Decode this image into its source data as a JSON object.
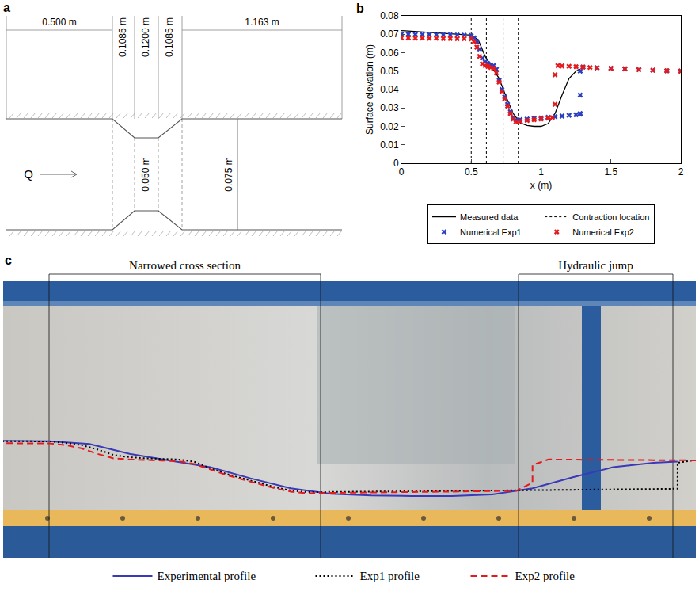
{
  "panel_labels": [
    "a",
    "b",
    "c"
  ],
  "diagram": {
    "flow_label": "Q",
    "lengths": [
      "0.500 m",
      "0.1085 m",
      "0.1200 m",
      "0.1085 m",
      "1.163 m"
    ],
    "narrow_width": "0.050 m",
    "channel_width": "0.075 m"
  },
  "chart_data": {
    "type": "line",
    "xlabel": "x (m)",
    "ylabel": "Surface elevation (m)",
    "xlim": [
      0,
      2
    ],
    "ylim": [
      0,
      0.08
    ],
    "xticks": [
      0,
      0.5,
      1,
      1.5,
      2
    ],
    "yticks": [
      0,
      0.01,
      0.02,
      0.03,
      0.04,
      0.05,
      0.06,
      0.07,
      0.08
    ],
    "grid": false,
    "legend": "bottom",
    "series": [
      {
        "name": "Measured data",
        "type": "line",
        "color": "#000000",
        "line_style": "solid",
        "x": [
          0,
          0.1,
          0.2,
          0.3,
          0.4,
          0.5,
          0.55,
          0.6,
          0.65,
          0.7,
          0.75,
          0.8,
          0.85,
          0.9,
          0.95,
          1.0,
          1.05,
          1.1,
          1.15,
          1.2,
          1.25,
          1.28
        ],
        "values": [
          0.072,
          0.0715,
          0.071,
          0.0705,
          0.07,
          0.0695,
          0.067,
          0.058,
          0.052,
          0.046,
          0.036,
          0.027,
          0.022,
          0.0205,
          0.02,
          0.02,
          0.0215,
          0.027,
          0.037,
          0.046,
          0.05,
          0.051
        ]
      },
      {
        "name": "Contraction location",
        "type": "vline",
        "color": "#000000",
        "line_style": "dotted",
        "x": [
          0.5,
          0.6085,
          0.7285,
          0.837
        ]
      },
      {
        "name": "Numerical Exp1",
        "type": "scatter",
        "marker": "x",
        "color": "#2b3fbf",
        "x": [
          0,
          0.05,
          0.1,
          0.15,
          0.2,
          0.25,
          0.3,
          0.35,
          0.4,
          0.45,
          0.5,
          0.52,
          0.54,
          0.56,
          0.58,
          0.6,
          0.62,
          0.64,
          0.66,
          0.68,
          0.7,
          0.72,
          0.74,
          0.76,
          0.78,
          0.8,
          0.82,
          0.85,
          0.9,
          0.95,
          1,
          1.05,
          1.1,
          1.15,
          1.2,
          1.25,
          1.28,
          1.28,
          1.28,
          1.28,
          1.3,
          1.4,
          1.5,
          1.6,
          1.7,
          1.8,
          1.9,
          2
        ],
        "values": [
          0.07,
          0.07,
          0.0699,
          0.0699,
          0.0698,
          0.0698,
          0.0697,
          0.0697,
          0.0696,
          0.0695,
          0.0693,
          0.068,
          0.066,
          0.062,
          0.057,
          0.055,
          0.054,
          0.0535,
          0.053,
          0.051,
          0.045,
          0.04,
          0.036,
          0.032,
          0.028,
          0.025,
          0.0235,
          0.0237,
          0.024,
          0.0243,
          0.0246,
          0.025,
          0.0253,
          0.0256,
          0.026,
          0.0263,
          0.0266,
          0.027,
          0.037,
          0.05,
          0.0522,
          0.0518,
          0.0515,
          0.0512,
          0.0508,
          0.0505,
          0.0502,
          0.05
        ]
      },
      {
        "name": "Numerical Exp2",
        "type": "scatter",
        "marker": "x",
        "color": "#e41a1c",
        "x": [
          0,
          0.05,
          0.1,
          0.15,
          0.2,
          0.25,
          0.3,
          0.35,
          0.4,
          0.45,
          0.5,
          0.52,
          0.54,
          0.56,
          0.58,
          0.6,
          0.62,
          0.64,
          0.66,
          0.68,
          0.7,
          0.72,
          0.74,
          0.76,
          0.78,
          0.8,
          0.82,
          0.85,
          0.9,
          0.95,
          1,
          1.05,
          1.08,
          1.1,
          1.1,
          1.12,
          1.15,
          1.2,
          1.25,
          1.3,
          1.35,
          1.4,
          1.5,
          1.6,
          1.7,
          1.8,
          1.9,
          2
        ],
        "values": [
          0.068,
          0.068,
          0.0679,
          0.0679,
          0.0678,
          0.0678,
          0.0677,
          0.0677,
          0.0676,
          0.0676,
          0.0675,
          0.066,
          0.063,
          0.058,
          0.054,
          0.053,
          0.0525,
          0.052,
          0.0515,
          0.049,
          0.044,
          0.039,
          0.035,
          0.031,
          0.027,
          0.024,
          0.0225,
          0.0228,
          0.0232,
          0.0236,
          0.024,
          0.0245,
          0.0248,
          0.032,
          0.048,
          0.053,
          0.0528,
          0.0526,
          0.0524,
          0.0522,
          0.052,
          0.0518,
          0.0515,
          0.0512,
          0.0508,
          0.0505,
          0.0502,
          0.05
        ]
      }
    ]
  },
  "photo": {
    "headings": [
      "Narrowed cross section",
      "Hydraulic jump"
    ],
    "profiles": [
      {
        "name": "Experimental profile",
        "color": "#3a3ab8",
        "line_style": "solid"
      },
      {
        "name": "Exp1 profile",
        "color": "#000000",
        "line_style": "dotted"
      },
      {
        "name": "Exp2 profile",
        "color": "#e41a1c",
        "line_style": "dashed"
      }
    ]
  }
}
